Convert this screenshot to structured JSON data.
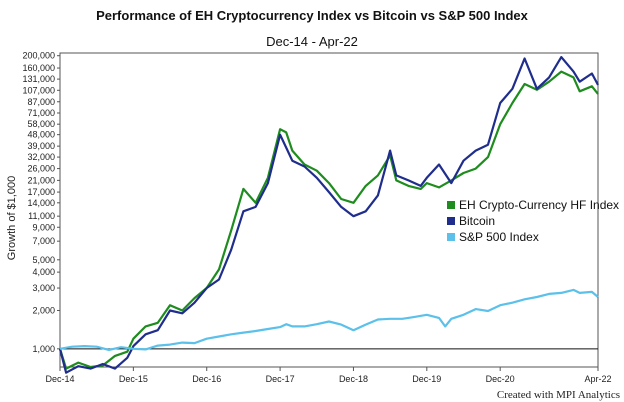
{
  "chart_data": {
    "type": "line",
    "title": "Performance of EH Cryptocurrency Index vs Bitcoin vs S&P 500 Index",
    "subtitle": "Dec-14 - Apr-22",
    "ylabel": "Growth of $1,000",
    "xlabel": "",
    "yscale": "log",
    "ylim": [
      720,
      210000
    ],
    "yticks": [
      1000,
      2000,
      3000,
      4000,
      5000,
      7000,
      9000,
      11000,
      14000,
      17000,
      21000,
      26000,
      32000,
      39000,
      48000,
      58000,
      71000,
      87000,
      107000,
      131000,
      160000,
      200000
    ],
    "ytick_labels": [
      "1,000",
      "2,000",
      "3,000",
      "4,000",
      "5,000",
      "7,000",
      "9,000",
      "11,000",
      "14,000",
      "17,000",
      "21,000",
      "26,000",
      "32,000",
      "39,000",
      "48,000",
      "58,000",
      "71,000",
      "87,000",
      "107,000",
      "131,000",
      "160,000",
      "200,000"
    ],
    "xlim": [
      "2014-12",
      "2022-04"
    ],
    "xticks": [
      "2014-12",
      "2015-12",
      "2016-12",
      "2017-12",
      "2018-12",
      "2019-12",
      "2020-12",
      "2022-04"
    ],
    "xtick_labels": [
      "Dec-14",
      "Dec-15",
      "Dec-16",
      "Dec-17",
      "Dec-18",
      "Dec-19",
      "Dec-20",
      "Apr-22"
    ],
    "reference_line": 1000,
    "grid": false,
    "legend_position": "right",
    "series": [
      {
        "name": "EH Crypto-Currency HF Index",
        "color": "#1e8c1e",
        "points": [
          [
            "2014-12",
            1000
          ],
          [
            "2015-01",
            700
          ],
          [
            "2015-03",
            780
          ],
          [
            "2015-05",
            720
          ],
          [
            "2015-07",
            740
          ],
          [
            "2015-09",
            880
          ],
          [
            "2015-11",
            950
          ],
          [
            "2015-12",
            1200
          ],
          [
            "2016-02",
            1500
          ],
          [
            "2016-04",
            1600
          ],
          [
            "2016-06",
            2200
          ],
          [
            "2016-08",
            2000
          ],
          [
            "2016-10",
            2500
          ],
          [
            "2016-12",
            3000
          ],
          [
            "2017-02",
            4200
          ],
          [
            "2017-04",
            8500
          ],
          [
            "2017-06",
            18000
          ],
          [
            "2017-08",
            14000
          ],
          [
            "2017-10",
            22000
          ],
          [
            "2017-12",
            53000
          ],
          [
            "2018-01",
            50000
          ],
          [
            "2018-02",
            36000
          ],
          [
            "2018-04",
            28000
          ],
          [
            "2018-06",
            25000
          ],
          [
            "2018-08",
            20000
          ],
          [
            "2018-10",
            15000
          ],
          [
            "2018-12",
            14000
          ],
          [
            "2019-02",
            19000
          ],
          [
            "2019-04",
            23000
          ],
          [
            "2019-06",
            33000
          ],
          [
            "2019-07",
            21000
          ],
          [
            "2019-09",
            19000
          ],
          [
            "2019-11",
            18000
          ],
          [
            "2019-12",
            20000
          ],
          [
            "2020-02",
            18500
          ],
          [
            "2020-04",
            21000
          ],
          [
            "2020-06",
            24000
          ],
          [
            "2020-08",
            26000
          ],
          [
            "2020-10",
            32000
          ],
          [
            "2020-12",
            58000
          ],
          [
            "2021-02",
            85000
          ],
          [
            "2021-04",
            120000
          ],
          [
            "2021-06",
            108000
          ],
          [
            "2021-08",
            125000
          ],
          [
            "2021-10",
            150000
          ],
          [
            "2021-12",
            135000
          ],
          [
            "2022-01",
            105000
          ],
          [
            "2022-03",
            115000
          ],
          [
            "2022-04",
            100000
          ]
        ]
      },
      {
        "name": "Bitcoin",
        "color": "#1f2d8c",
        "points": [
          [
            "2014-12",
            1000
          ],
          [
            "2015-01",
            650
          ],
          [
            "2015-03",
            730
          ],
          [
            "2015-05",
            700
          ],
          [
            "2015-07",
            760
          ],
          [
            "2015-09",
            700
          ],
          [
            "2015-11",
            850
          ],
          [
            "2015-12",
            1050
          ],
          [
            "2016-02",
            1300
          ],
          [
            "2016-04",
            1400
          ],
          [
            "2016-06",
            2000
          ],
          [
            "2016-08",
            1900
          ],
          [
            "2016-10",
            2300
          ],
          [
            "2016-12",
            3000
          ],
          [
            "2017-02",
            3500
          ],
          [
            "2017-04",
            6000
          ],
          [
            "2017-06",
            12000
          ],
          [
            "2017-08",
            13000
          ],
          [
            "2017-10",
            20000
          ],
          [
            "2017-12",
            48000
          ],
          [
            "2018-01",
            38000
          ],
          [
            "2018-02",
            30000
          ],
          [
            "2018-04",
            27000
          ],
          [
            "2018-06",
            22000
          ],
          [
            "2018-08",
            17000
          ],
          [
            "2018-10",
            13000
          ],
          [
            "2018-12",
            11000
          ],
          [
            "2019-02",
            12000
          ],
          [
            "2019-04",
            16000
          ],
          [
            "2019-06",
            36000
          ],
          [
            "2019-07",
            23000
          ],
          [
            "2019-09",
            21000
          ],
          [
            "2019-11",
            19000
          ],
          [
            "2019-12",
            22000
          ],
          [
            "2020-02",
            28000
          ],
          [
            "2020-04",
            20000
          ],
          [
            "2020-06",
            30000
          ],
          [
            "2020-08",
            36000
          ],
          [
            "2020-10",
            40000
          ],
          [
            "2020-12",
            85000
          ],
          [
            "2021-02",
            110000
          ],
          [
            "2021-04",
            190000
          ],
          [
            "2021-06",
            110000
          ],
          [
            "2021-08",
            135000
          ],
          [
            "2021-10",
            195000
          ],
          [
            "2021-12",
            150000
          ],
          [
            "2022-01",
            125000
          ],
          [
            "2022-03",
            145000
          ],
          [
            "2022-04",
            118000
          ]
        ]
      },
      {
        "name": "S&P 500 Index",
        "color": "#5bc0ea",
        "points": [
          [
            "2014-12",
            1000
          ],
          [
            "2015-02",
            1040
          ],
          [
            "2015-04",
            1050
          ],
          [
            "2015-06",
            1040
          ],
          [
            "2015-08",
            980
          ],
          [
            "2015-10",
            1030
          ],
          [
            "2015-12",
            1000
          ],
          [
            "2016-02",
            990
          ],
          [
            "2016-04",
            1060
          ],
          [
            "2016-06",
            1080
          ],
          [
            "2016-08",
            1120
          ],
          [
            "2016-10",
            1110
          ],
          [
            "2016-12",
            1200
          ],
          [
            "2017-02",
            1250
          ],
          [
            "2017-04",
            1300
          ],
          [
            "2017-06",
            1340
          ],
          [
            "2017-08",
            1380
          ],
          [
            "2017-10",
            1430
          ],
          [
            "2017-12",
            1480
          ],
          [
            "2018-01",
            1560
          ],
          [
            "2018-02",
            1500
          ],
          [
            "2018-04",
            1500
          ],
          [
            "2018-06",
            1560
          ],
          [
            "2018-08",
            1640
          ],
          [
            "2018-10",
            1550
          ],
          [
            "2018-12",
            1400
          ],
          [
            "2019-02",
            1550
          ],
          [
            "2019-04",
            1700
          ],
          [
            "2019-06",
            1720
          ],
          [
            "2019-08",
            1720
          ],
          [
            "2019-10",
            1780
          ],
          [
            "2019-12",
            1850
          ],
          [
            "2020-02",
            1750
          ],
          [
            "2020-03",
            1500
          ],
          [
            "2020-04",
            1720
          ],
          [
            "2020-06",
            1850
          ],
          [
            "2020-08",
            2050
          ],
          [
            "2020-10",
            1980
          ],
          [
            "2020-12",
            2200
          ],
          [
            "2021-02",
            2300
          ],
          [
            "2021-04",
            2450
          ],
          [
            "2021-06",
            2550
          ],
          [
            "2021-08",
            2700
          ],
          [
            "2021-10",
            2750
          ],
          [
            "2021-12",
            2900
          ],
          [
            "2022-01",
            2750
          ],
          [
            "2022-03",
            2800
          ],
          [
            "2022-04",
            2550
          ]
        ]
      }
    ],
    "credit": "Created with MPI Analytics"
  }
}
